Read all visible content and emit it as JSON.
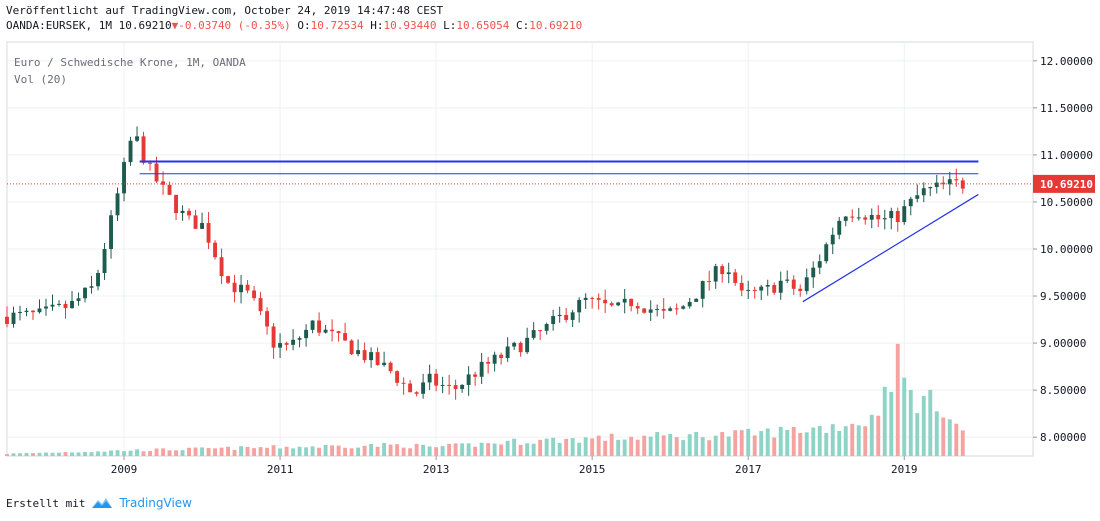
{
  "header": {
    "published": "Veröffentlicht auf TradingView.com, October 24, 2019 14:47:48 CEST",
    "symbol": "OANDA:EURSEK, 1M",
    "last": "10.69210",
    "change": "-0.03740 (-0.35%)",
    "o_label": "O:",
    "o_value": "10.72534",
    "h_label": "H:",
    "h_value": "10.93440",
    "l_label": "L:",
    "l_value": "10.65054",
    "c_label": "C:",
    "c_value": "10.69210"
  },
  "footer": {
    "created_with": "Erstellt mit",
    "brand": "TradingView"
  },
  "colors": {
    "up": "#1e5b4f",
    "down": "#e53935",
    "vol_up": "#8dd3c6",
    "vol_down": "#f5a3a1",
    "drawing": "#2633e8",
    "price_line": "#e53935"
  },
  "chart_data": {
    "type": "candlestick",
    "title": "Euro / Schwedische Krone, 1M, OANDA",
    "indicator": "Vol (20)",
    "ylim": [
      7.8,
      12.2
    ],
    "yticks": [
      "12.00000",
      "11.50000",
      "11.00000",
      "10.50000",
      "10.00000",
      "9.50000",
      "9.00000",
      "8.50000",
      "8.00000"
    ],
    "ytick_values": [
      12.0,
      11.5,
      11.0,
      10.5,
      10.0,
      9.5,
      9.0,
      8.5,
      8.0
    ],
    "xticks": [
      "2009",
      "2011",
      "2013",
      "2015",
      "2017",
      "2019"
    ],
    "xtick_values": [
      2009,
      2011,
      2013,
      2015,
      2017,
      2019
    ],
    "xlim": [
      2007.5,
      2020.65
    ],
    "last_price_label": "10.69210",
    "last_price": 10.6921,
    "horizontal_lines": [
      10.93,
      10.8
    ],
    "trendline": {
      "from": [
        2017.7,
        9.44
      ],
      "to": [
        2019.6,
        10.58
      ]
    },
    "anchors": [
      [
        2007.5,
        9.28
      ],
      [
        2008.0,
        9.3
      ],
      [
        2008.4,
        9.4
      ],
      [
        2008.7,
        9.6
      ],
      [
        2008.95,
        10.4
      ],
      [
        2009.2,
        11.25
      ],
      [
        2009.4,
        10.85
      ],
      [
        2009.6,
        10.6
      ],
      [
        2009.9,
        10.3
      ],
      [
        2010.1,
        10.25
      ],
      [
        2010.4,
        9.65
      ],
      [
        2010.7,
        9.5
      ],
      [
        2011.0,
        9.0
      ],
      [
        2011.2,
        8.95
      ],
      [
        2011.5,
        9.2
      ],
      [
        2011.8,
        9.05
      ],
      [
        2012.2,
        8.85
      ],
      [
        2012.5,
        8.7
      ],
      [
        2012.8,
        8.45
      ],
      [
        2013.0,
        8.6
      ],
      [
        2013.3,
        8.5
      ],
      [
        2013.6,
        8.7
      ],
      [
        2014.0,
        8.9
      ],
      [
        2014.4,
        9.1
      ],
      [
        2014.8,
        9.35
      ],
      [
        2015.0,
        9.45
      ],
      [
        2015.4,
        9.35
      ],
      [
        2015.6,
        9.45
      ],
      [
        2016.0,
        9.3
      ],
      [
        2016.2,
        9.35
      ],
      [
        2016.5,
        9.6
      ],
      [
        2016.8,
        9.85
      ],
      [
        2017.0,
        9.5
      ],
      [
        2017.3,
        9.55
      ],
      [
        2017.5,
        9.65
      ],
      [
        2017.75,
        9.55
      ],
      [
        2018.0,
        9.9
      ],
      [
        2018.3,
        10.4
      ],
      [
        2018.5,
        10.4
      ],
      [
        2018.8,
        10.3
      ],
      [
        2019.0,
        10.35
      ],
      [
        2019.3,
        10.6
      ],
      [
        2019.5,
        10.65
      ],
      [
        2019.7,
        10.69
      ]
    ],
    "volume_anchors": [
      [
        2007.5,
        0.2
      ],
      [
        2009.0,
        0.5
      ],
      [
        2011.0,
        0.8
      ],
      [
        2012.5,
        1.0
      ],
      [
        2013.0,
        0.8
      ],
      [
        2014.0,
        1.3
      ],
      [
        2015.0,
        1.6
      ],
      [
        2016.0,
        1.8
      ],
      [
        2017.0,
        2.0
      ],
      [
        2018.0,
        2.6
      ],
      [
        2018.6,
        3.3
      ],
      [
        2018.9,
        8.8
      ],
      [
        2019.1,
        5.2
      ],
      [
        2019.5,
        4.6
      ],
      [
        2019.7,
        2.4
      ]
    ]
  }
}
